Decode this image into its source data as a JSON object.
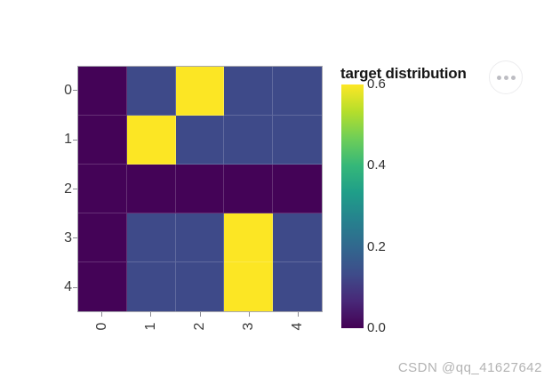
{
  "panel": {
    "title": "target distribution",
    "menu_icon": "ellipsis-icon",
    "watermark": "CSDN @qq_41627642"
  },
  "chart_data": {
    "type": "heatmap",
    "title": "target distribution",
    "x_ticks": [
      "0",
      "1",
      "2",
      "3",
      "4"
    ],
    "y_ticks": [
      "0",
      "1",
      "2",
      "3",
      "4"
    ],
    "rows": [
      [
        0,
        0.133,
        0.6,
        0.133,
        0.133
      ],
      [
        0,
        0.6,
        0.133,
        0.133,
        0.133
      ],
      [
        0,
        0,
        0,
        0,
        0
      ],
      [
        0,
        0.133,
        0.133,
        0.6,
        0.133
      ],
      [
        0,
        0.133,
        0.133,
        0.6,
        0.133
      ]
    ],
    "colormap": "viridis",
    "value_colors": {
      "0": "#440357",
      "0.133": "#3e4a89",
      "0.6": "#fce624"
    },
    "colorbar": {
      "min": 0.0,
      "max": 0.6,
      "tick_labels": [
        "0.6",
        "0.4",
        "0.2",
        "0.0"
      ],
      "gradient_bottom_to_top": [
        "#440154",
        "#482878",
        "#3e4c8a",
        "#31688e",
        "#26828e",
        "#1f9e89",
        "#35b779",
        "#6ece58",
        "#b5de2b",
        "#fde725"
      ]
    },
    "grid": true,
    "legend_position": "right"
  }
}
